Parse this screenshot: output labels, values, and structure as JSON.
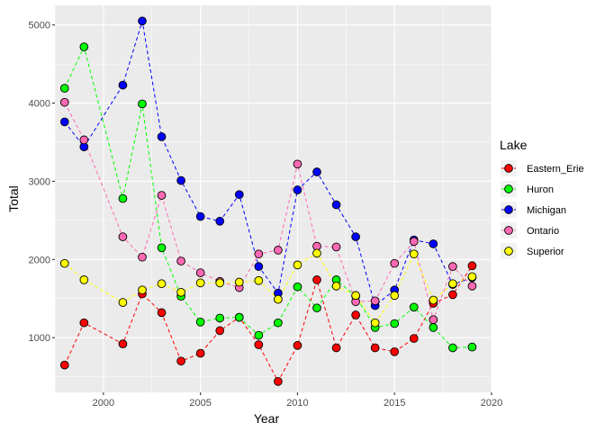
{
  "chart_data": {
    "type": "line",
    "title": "",
    "xlabel": "Year",
    "ylabel": "Total",
    "xlim": [
      1997.5,
      2020.0
    ],
    "ylim": [
      300,
      5250
    ],
    "x_ticks": [
      2000,
      2005,
      2010,
      2015,
      2020
    ],
    "y_ticks": [
      1000,
      2000,
      3000,
      4000,
      5000
    ],
    "grid": true,
    "legend": {
      "title": "Lake",
      "position": "right"
    },
    "line_style": "dashed",
    "series": [
      {
        "name": "Eastern_Erie",
        "color": "#ff0000",
        "points": [
          [
            1998,
            650
          ],
          [
            1999,
            1190
          ],
          [
            2001,
            920
          ],
          [
            2002,
            1560
          ],
          [
            2003,
            1320
          ],
          [
            2004,
            700
          ],
          [
            2005,
            800
          ],
          [
            2006,
            1090
          ],
          [
            2007,
            1260
          ],
          [
            2008,
            910
          ],
          [
            2009,
            440
          ],
          [
            2010,
            900
          ],
          [
            2011,
            1740
          ],
          [
            2012,
            870
          ],
          [
            2013,
            1290
          ],
          [
            2014,
            870
          ],
          [
            2015,
            820
          ],
          [
            2016,
            990
          ],
          [
            2017,
            1440
          ],
          [
            2018,
            1550
          ],
          [
            2019,
            1920
          ]
        ]
      },
      {
        "name": "Huron",
        "color": "#00ff00",
        "points": [
          [
            1998,
            4190
          ],
          [
            1999,
            4720
          ],
          [
            2001,
            2780
          ],
          [
            2002,
            3990
          ],
          [
            2003,
            2150
          ],
          [
            2004,
            1530
          ],
          [
            2005,
            1200
          ],
          [
            2006,
            1250
          ],
          [
            2007,
            1260
          ],
          [
            2008,
            1030
          ],
          [
            2009,
            1190
          ],
          [
            2010,
            1650
          ],
          [
            2011,
            1380
          ],
          [
            2012,
            1740
          ],
          [
            2013,
            1530
          ],
          [
            2014,
            1130
          ],
          [
            2015,
            1180
          ],
          [
            2016,
            1390
          ],
          [
            2017,
            1130
          ],
          [
            2018,
            870
          ],
          [
            2019,
            880
          ]
        ]
      },
      {
        "name": "Michigan",
        "color": "#0000ff",
        "points": [
          [
            1998,
            3760
          ],
          [
            1999,
            3440
          ],
          [
            2001,
            4230
          ],
          [
            2002,
            5050
          ],
          [
            2003,
            3570
          ],
          [
            2004,
            3010
          ],
          [
            2005,
            2550
          ],
          [
            2006,
            2490
          ],
          [
            2007,
            2830
          ],
          [
            2008,
            1910
          ],
          [
            2009,
            1570
          ],
          [
            2010,
            2890
          ],
          [
            2011,
            3120
          ],
          [
            2012,
            2700
          ],
          [
            2013,
            2290
          ],
          [
            2014,
            1410
          ],
          [
            2015,
            1610
          ],
          [
            2016,
            2250
          ],
          [
            2017,
            2200
          ],
          [
            2018,
            1680
          ],
          [
            2019,
            1770
          ]
        ]
      },
      {
        "name": "Ontario",
        "color": "#ff69b4",
        "points": [
          [
            1998,
            4010
          ],
          [
            1999,
            3530
          ],
          [
            2001,
            2290
          ],
          [
            2002,
            2030
          ],
          [
            2003,
            2820
          ],
          [
            2004,
            1980
          ],
          [
            2005,
            1830
          ],
          [
            2006,
            1720
          ],
          [
            2007,
            1640
          ],
          [
            2008,
            2070
          ],
          [
            2009,
            2120
          ],
          [
            2010,
            3220
          ],
          [
            2011,
            2170
          ],
          [
            2012,
            2160
          ],
          [
            2013,
            1460
          ],
          [
            2014,
            1470
          ],
          [
            2015,
            1950
          ],
          [
            2016,
            2230
          ],
          [
            2017,
            1230
          ],
          [
            2018,
            1910
          ],
          [
            2019,
            1660
          ]
        ]
      },
      {
        "name": "Superior",
        "color": "#ffff00",
        "points": [
          [
            1998,
            1950
          ],
          [
            1999,
            1740
          ],
          [
            2001,
            1450
          ],
          [
            2002,
            1610
          ],
          [
            2003,
            1690
          ],
          [
            2004,
            1580
          ],
          [
            2005,
            1700
          ],
          [
            2006,
            1700
          ],
          [
            2007,
            1710
          ],
          [
            2008,
            1730
          ],
          [
            2009,
            1490
          ],
          [
            2010,
            1930
          ],
          [
            2011,
            2080
          ],
          [
            2012,
            1660
          ],
          [
            2013,
            1540
          ],
          [
            2014,
            1190
          ],
          [
            2015,
            1540
          ],
          [
            2016,
            2070
          ],
          [
            2017,
            1480
          ],
          [
            2018,
            1690
          ],
          [
            2019,
            1780
          ]
        ]
      }
    ]
  }
}
